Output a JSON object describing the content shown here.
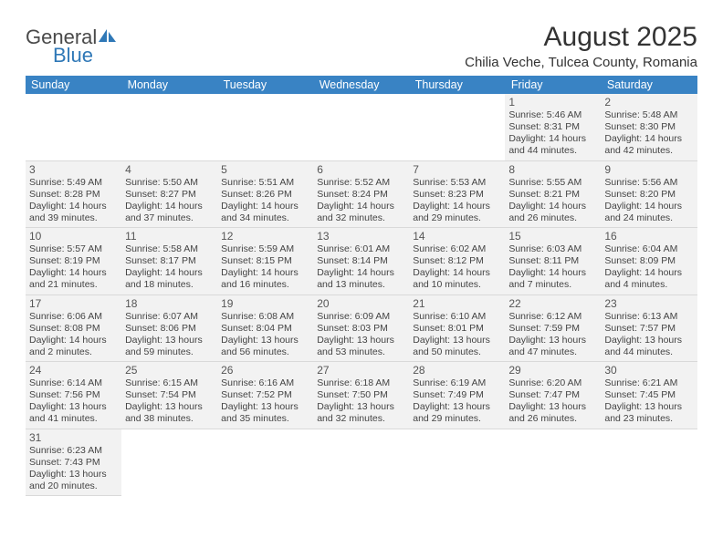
{
  "brand": {
    "name1": "General",
    "name2": "Blue"
  },
  "title": "August 2025",
  "location": "Chilia Veche, Tulcea County, Romania",
  "colors": {
    "header_bg": "#3983c4",
    "header_text": "#ffffff",
    "cell_bg": "#f2f2f2",
    "border": "#d9d9d9",
    "text": "#3a3a3a",
    "brand_blue": "#2f78b7"
  },
  "weekdays": [
    "Sunday",
    "Monday",
    "Tuesday",
    "Wednesday",
    "Thursday",
    "Friday",
    "Saturday"
  ],
  "first_weekday_index": 5,
  "days": [
    {
      "n": 1,
      "sr": "5:46 AM",
      "ss": "8:31 PM",
      "dl": "14 hours and 44 minutes."
    },
    {
      "n": 2,
      "sr": "5:48 AM",
      "ss": "8:30 PM",
      "dl": "14 hours and 42 minutes."
    },
    {
      "n": 3,
      "sr": "5:49 AM",
      "ss": "8:28 PM",
      "dl": "14 hours and 39 minutes."
    },
    {
      "n": 4,
      "sr": "5:50 AM",
      "ss": "8:27 PM",
      "dl": "14 hours and 37 minutes."
    },
    {
      "n": 5,
      "sr": "5:51 AM",
      "ss": "8:26 PM",
      "dl": "14 hours and 34 minutes."
    },
    {
      "n": 6,
      "sr": "5:52 AM",
      "ss": "8:24 PM",
      "dl": "14 hours and 32 minutes."
    },
    {
      "n": 7,
      "sr": "5:53 AM",
      "ss": "8:23 PM",
      "dl": "14 hours and 29 minutes."
    },
    {
      "n": 8,
      "sr": "5:55 AM",
      "ss": "8:21 PM",
      "dl": "14 hours and 26 minutes."
    },
    {
      "n": 9,
      "sr": "5:56 AM",
      "ss": "8:20 PM",
      "dl": "14 hours and 24 minutes."
    },
    {
      "n": 10,
      "sr": "5:57 AM",
      "ss": "8:19 PM",
      "dl": "14 hours and 21 minutes."
    },
    {
      "n": 11,
      "sr": "5:58 AM",
      "ss": "8:17 PM",
      "dl": "14 hours and 18 minutes."
    },
    {
      "n": 12,
      "sr": "5:59 AM",
      "ss": "8:15 PM",
      "dl": "14 hours and 16 minutes."
    },
    {
      "n": 13,
      "sr": "6:01 AM",
      "ss": "8:14 PM",
      "dl": "14 hours and 13 minutes."
    },
    {
      "n": 14,
      "sr": "6:02 AM",
      "ss": "8:12 PM",
      "dl": "14 hours and 10 minutes."
    },
    {
      "n": 15,
      "sr": "6:03 AM",
      "ss": "8:11 PM",
      "dl": "14 hours and 7 minutes."
    },
    {
      "n": 16,
      "sr": "6:04 AM",
      "ss": "8:09 PM",
      "dl": "14 hours and 4 minutes."
    },
    {
      "n": 17,
      "sr": "6:06 AM",
      "ss": "8:08 PM",
      "dl": "14 hours and 2 minutes."
    },
    {
      "n": 18,
      "sr": "6:07 AM",
      "ss": "8:06 PM",
      "dl": "13 hours and 59 minutes."
    },
    {
      "n": 19,
      "sr": "6:08 AM",
      "ss": "8:04 PM",
      "dl": "13 hours and 56 minutes."
    },
    {
      "n": 20,
      "sr": "6:09 AM",
      "ss": "8:03 PM",
      "dl": "13 hours and 53 minutes."
    },
    {
      "n": 21,
      "sr": "6:10 AM",
      "ss": "8:01 PM",
      "dl": "13 hours and 50 minutes."
    },
    {
      "n": 22,
      "sr": "6:12 AM",
      "ss": "7:59 PM",
      "dl": "13 hours and 47 minutes."
    },
    {
      "n": 23,
      "sr": "6:13 AM",
      "ss": "7:57 PM",
      "dl": "13 hours and 44 minutes."
    },
    {
      "n": 24,
      "sr": "6:14 AM",
      "ss": "7:56 PM",
      "dl": "13 hours and 41 minutes."
    },
    {
      "n": 25,
      "sr": "6:15 AM",
      "ss": "7:54 PM",
      "dl": "13 hours and 38 minutes."
    },
    {
      "n": 26,
      "sr": "6:16 AM",
      "ss": "7:52 PM",
      "dl": "13 hours and 35 minutes."
    },
    {
      "n": 27,
      "sr": "6:18 AM",
      "ss": "7:50 PM",
      "dl": "13 hours and 32 minutes."
    },
    {
      "n": 28,
      "sr": "6:19 AM",
      "ss": "7:49 PM",
      "dl": "13 hours and 29 minutes."
    },
    {
      "n": 29,
      "sr": "6:20 AM",
      "ss": "7:47 PM",
      "dl": "13 hours and 26 minutes."
    },
    {
      "n": 30,
      "sr": "6:21 AM",
      "ss": "7:45 PM",
      "dl": "13 hours and 23 minutes."
    },
    {
      "n": 31,
      "sr": "6:23 AM",
      "ss": "7:43 PM",
      "dl": "13 hours and 20 minutes."
    }
  ],
  "labels": {
    "sunrise": "Sunrise: ",
    "sunset": "Sunset: ",
    "daylight": "Daylight: "
  }
}
